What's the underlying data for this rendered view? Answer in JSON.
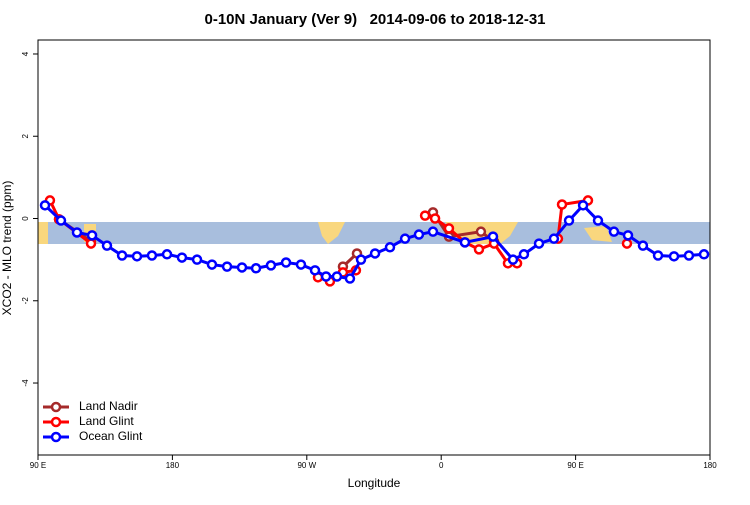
{
  "chart_data": {
    "type": "line",
    "title": "0-10N January (Ver 9)   2014-09-06 to 2018-12-31",
    "x_label": "Longitude",
    "y_label": "XCO2 - MLO trend (ppm)",
    "xlim": [
      90,
      540
    ],
    "xticks": [
      {
        "value": 90,
        "label": "90 E"
      },
      {
        "value": 180,
        "label": "180"
      },
      {
        "value": 270,
        "label": "90 W"
      },
      {
        "value": 360,
        "label": "0"
      },
      {
        "value": 450,
        "label": "90 E"
      },
      {
        "value": 540,
        "label": "180"
      }
    ],
    "ylim": [
      -5.75,
      4.34
    ],
    "yticks": [
      -4,
      -2,
      0,
      2,
      4
    ],
    "legend": "bottom-left",
    "series": [
      {
        "name": "Land Nadir",
        "color": "#a52a2a",
        "x": [
          104.1,
          125.5,
          200,
          294.2,
          303.6,
          330,
          354.5,
          365.2,
          386.6,
          395.4
        ],
        "values": [
          -0.02,
          -0.55,
          null,
          -1.17,
          -0.85,
          null,
          0.15,
          -0.44,
          -0.32,
          -0.56
        ]
      },
      {
        "name": "Land Glint",
        "color": "#ff0000",
        "x": [
          98.0,
          104.1,
          125.5,
          200,
          277.5,
          285.5,
          294.2,
          302.9,
          330,
          349.2,
          355.9,
          365.2,
          375.9,
          385.3,
          395.4,
          404.7,
          410.8,
          425,
          438.2,
          440.9,
          458.3,
          470,
          484.4
        ],
        "values": [
          0.44,
          -0.02,
          -0.61,
          null,
          -1.43,
          -1.53,
          -1.31,
          -1.26,
          null,
          0.07,
          0,
          -0.24,
          -0.58,
          -0.75,
          -0.61,
          -1.09,
          -1.09,
          null,
          -0.49,
          0.34,
          0.44,
          null,
          -0.61
        ]
      },
      {
        "name": "Ocean Glint",
        "color": "#0000ff",
        "x": [
          94.7,
          105.4,
          116.1,
          126.2,
          136.2,
          146.3,
          156.3,
          166.3,
          176.4,
          186.4,
          196.5,
          206.5,
          216.6,
          226.6,
          236.0,
          246.0,
          256.1,
          266.1,
          275.5,
          282.9,
          290.2,
          298.9,
          306.3,
          315.7,
          325.7,
          335.8,
          345.1,
          354.5,
          375.9,
          394.7,
          408.1,
          415.4,
          425.5,
          435.5,
          445.6,
          455.0,
          465.0,
          475.7,
          485.1,
          495.1,
          505.2,
          515.9,
          525.9,
          536.0
        ],
        "values": [
          0.32,
          -0.05,
          -0.34,
          -0.41,
          -0.66,
          -0.9,
          -0.92,
          -0.9,
          -0.87,
          -0.95,
          -1.0,
          -1.12,
          -1.17,
          -1.19,
          -1.21,
          -1.14,
          -1.07,
          -1.12,
          -1.26,
          -1.41,
          -1.41,
          -1.46,
          -1.0,
          -0.85,
          -0.7,
          -0.49,
          -0.39,
          -0.32,
          -0.58,
          -0.44,
          -1.0,
          -0.87,
          -0.61,
          -0.49,
          -0.05,
          0.32,
          -0.05,
          -0.32,
          -0.41,
          -0.66,
          -0.9,
          -0.92,
          -0.9,
          -0.87
        ]
      }
    ]
  }
}
